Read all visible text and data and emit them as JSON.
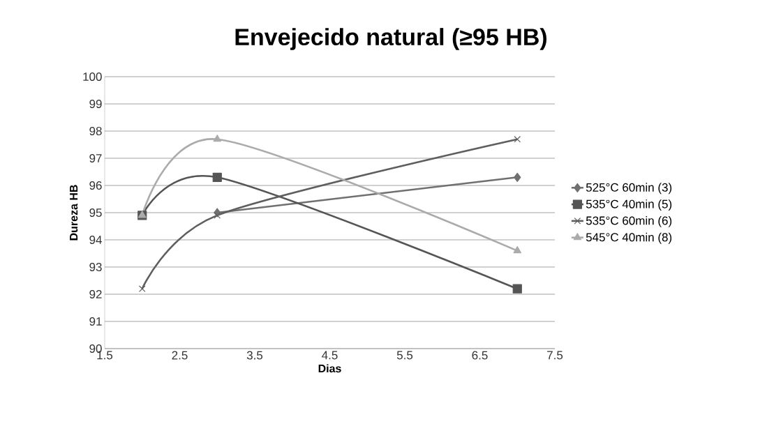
{
  "chart_data": {
    "type": "line",
    "title": "Envejecido natural (≥95 HB)",
    "xlabel": "Dias",
    "ylabel": "Dureza HB",
    "x": [
      2,
      3,
      7
    ],
    "series": [
      {
        "name": "525°C 60min (3)",
        "color": "#707070",
        "marker": "diamond",
        "values": [
          null,
          95.0,
          96.3
        ]
      },
      {
        "name": "535°C 40min (5)",
        "color": "#555555",
        "marker": "square",
        "values": [
          94.9,
          96.3,
          92.2
        ]
      },
      {
        "name": "535°C 60min (6)",
        "color": "#5e5e5e",
        "marker": "cross",
        "values": [
          92.2,
          94.9,
          97.7
        ]
      },
      {
        "name": "545°C 40min (8)",
        "color": "#ababab",
        "marker": "triangle",
        "values": [
          94.9,
          97.7,
          93.6
        ]
      }
    ],
    "xlim": [
      1.5,
      7.5
    ],
    "xticks": [
      1.5,
      2.5,
      3.5,
      4.5,
      5.5,
      6.5,
      7.5
    ],
    "ylim": [
      90,
      100
    ],
    "yticks": [
      90,
      91,
      92,
      93,
      94,
      95,
      96,
      97,
      98,
      99,
      100
    ],
    "grid": "y",
    "legend": "right",
    "line_style": "solid"
  }
}
